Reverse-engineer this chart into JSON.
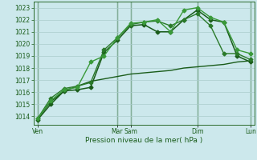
{
  "background_color": "#cce8ec",
  "grid_color": "#aacccc",
  "xlabel": "Pression niveau de la mer( hPa )",
  "ylim": [
    1013.3,
    1023.5
  ],
  "yticks": [
    1014,
    1015,
    1016,
    1017,
    1018,
    1019,
    1020,
    1021,
    1022,
    1023
  ],
  "xlim": [
    -0.3,
    16.3
  ],
  "vline_positions": [
    0,
    6,
    7,
    12,
    16
  ],
  "xtick_labels_pos": [
    0,
    6,
    7,
    12,
    16
  ],
  "xtick_labels": [
    "Ven",
    "Mar",
    "Sam",
    "Dim",
    "Lun"
  ],
  "series1": {
    "x": [
      0,
      1,
      2,
      3,
      4,
      5,
      6,
      7,
      8,
      9,
      10,
      11,
      12,
      13,
      14,
      15,
      16
    ],
    "y": [
      1013.7,
      1015.0,
      1016.1,
      1016.2,
      1016.4,
      1019.3,
      1020.3,
      1021.5,
      1021.6,
      1021.0,
      1021.0,
      1022.0,
      1022.8,
      1022.0,
      1021.8,
      1019.0,
      1018.5
    ],
    "color": "#1a5c1a",
    "marker": "D",
    "markersize": 2.5,
    "linewidth": 1.1
  },
  "series2": {
    "x": [
      0,
      1,
      2,
      3,
      4,
      5,
      6,
      7,
      8,
      9,
      10,
      11,
      12,
      13,
      14,
      15,
      16
    ],
    "y": [
      1013.8,
      1015.5,
      1016.3,
      1016.5,
      1016.8,
      1019.5,
      1020.5,
      1021.6,
      1021.8,
      1021.9,
      1021.5,
      1022.0,
      1022.5,
      1021.5,
      1019.2,
      1019.2,
      1018.7
    ],
    "color": "#2a7a2a",
    "marker": "D",
    "markersize": 2.5,
    "linewidth": 1.0
  },
  "series3": {
    "x": [
      0,
      1,
      2,
      3,
      4,
      5,
      6,
      7,
      8,
      9,
      10,
      11,
      12,
      13,
      14,
      15,
      16
    ],
    "y": [
      1013.8,
      1015.3,
      1016.2,
      1016.4,
      1018.5,
      1019.0,
      1020.5,
      1021.7,
      1021.8,
      1022.0,
      1021.0,
      1022.8,
      1023.0,
      1022.2,
      1021.8,
      1019.5,
      1019.2
    ],
    "color": "#3a9a3a",
    "marker": "D",
    "markersize": 2.5,
    "linewidth": 1.0
  },
  "series4": {
    "x": [
      0,
      1,
      2,
      3,
      4,
      5,
      6,
      7,
      8,
      9,
      10,
      11,
      12,
      13,
      14,
      15,
      16
    ],
    "y": [
      1013.8,
      1015.2,
      1016.1,
      1016.5,
      1016.9,
      1017.1,
      1017.3,
      1017.5,
      1017.6,
      1017.7,
      1017.8,
      1018.0,
      1018.1,
      1018.2,
      1018.3,
      1018.5,
      1018.6
    ],
    "color": "#1a5c1a",
    "marker": null,
    "markersize": 0,
    "linewidth": 1.0,
    "linestyle": "-"
  }
}
